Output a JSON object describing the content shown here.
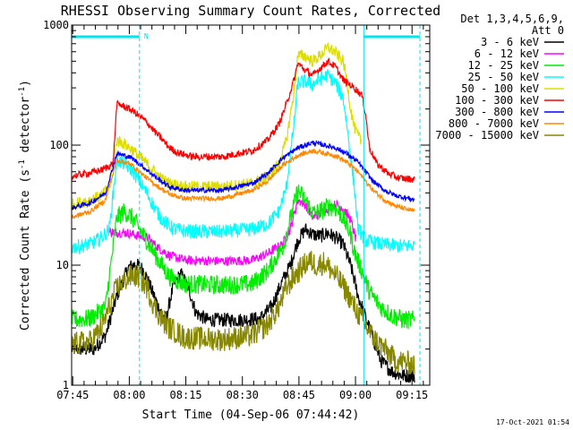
{
  "title": "RHESSI Observing Summary Count Rates, Corrected",
  "footer_timestamp": "17-Oct-2021 01:54",
  "colors": {
    "background": "#ffffff",
    "axes": "#000000",
    "marker": "#00e5ee"
  },
  "chart_data": {
    "type": "line",
    "title": "RHESSI Observing Summary Count Rates, Corrected",
    "xlabel": "Start Time (04-Sep-06 07:44:42)",
    "ylabel_parts": [
      "Corrected Count Rate (s",
      "-1",
      " detector",
      "-1",
      ")"
    ],
    "x_units": "minutes after 07:44:42",
    "xlim": [
      0,
      95
    ],
    "ylim": [
      1,
      1000
    ],
    "yscale": "log",
    "x_ticks": [
      {
        "t": 0.3,
        "label": "07:45"
      },
      {
        "t": 15.3,
        "label": "08:00"
      },
      {
        "t": 30.3,
        "label": "08:15"
      },
      {
        "t": 45.3,
        "label": "08:30"
      },
      {
        "t": 60.3,
        "label": "08:45"
      },
      {
        "t": 75.3,
        "label": "09:00"
      },
      {
        "t": 90.3,
        "label": "09:15"
      }
    ],
    "y_ticks": [
      {
        "v": 1,
        "label": "1"
      },
      {
        "v": 10,
        "label": "10"
      },
      {
        "v": 100,
        "label": "100"
      },
      {
        "v": 1000,
        "label": "1000"
      }
    ],
    "legend": {
      "placement": "right-outside",
      "header": [
        "Det 1,3,4,5,6,9,",
        "Att 0"
      ]
    },
    "markers": {
      "vertical_lines_t": [
        18.0,
        77.5,
        92.4
      ],
      "vertical_styles": [
        "dashed",
        "solid",
        "dashed"
      ],
      "night_intervals": [
        [
          0,
          18.0
        ],
        [
          77.5,
          92.4
        ]
      ],
      "night_level": 800,
      "night_label": "N",
      "night_label_t": 19.2
    },
    "series": [
      {
        "name": "3 - 6 keV",
        "color": "#000000",
        "noise": 0.06,
        "points": [
          [
            0,
            2.0
          ],
          [
            6,
            2.0
          ],
          [
            9,
            2.6
          ],
          [
            12,
            5.5
          ],
          [
            15,
            9.5
          ],
          [
            17,
            10.2
          ],
          [
            19,
            9.2
          ],
          [
            21,
            6.5
          ],
          [
            23,
            4.5
          ],
          [
            25,
            3.5
          ],
          [
            27,
            6.8
          ],
          [
            29,
            8.5
          ],
          [
            31,
            6.5
          ],
          [
            33,
            4.0
          ],
          [
            36,
            3.5
          ],
          [
            40,
            3.5
          ],
          [
            45,
            3.5
          ],
          [
            50,
            3.6
          ],
          [
            53,
            4.5
          ],
          [
            56,
            7.5
          ],
          [
            58,
            10.0
          ],
          [
            60,
            16.0
          ],
          [
            62,
            20.0
          ],
          [
            64,
            18.0
          ],
          [
            66,
            17.5
          ],
          [
            68,
            18.5
          ],
          [
            70,
            17.0
          ],
          [
            72,
            15.0
          ],
          [
            74,
            10.0
          ],
          [
            75,
            7.5
          ],
          [
            76,
            5.5
          ],
          [
            77,
            4.5
          ],
          [
            79,
            3.0
          ],
          [
            82,
            1.6
          ],
          [
            85,
            1.3
          ],
          [
            88,
            1.2
          ],
          [
            91,
            1.2
          ]
        ]
      },
      {
        "name": "6 - 12 keV",
        "color": "#ff00ff",
        "noise": 0.04,
        "points": [
          [
            10,
            19.0
          ],
          [
            15,
            18.5
          ],
          [
            18,
            17.5
          ],
          [
            20,
            17.0
          ],
          [
            23,
            14.0
          ],
          [
            26,
            12.0
          ],
          [
            30,
            11.0
          ],
          [
            40,
            10.8
          ],
          [
            48,
            11.0
          ],
          [
            52,
            12.5
          ],
          [
            56,
            15.0
          ],
          [
            58,
            20.0
          ],
          [
            60,
            35.0
          ],
          [
            62,
            32.0
          ],
          [
            64,
            25.0
          ],
          [
            66,
            27.0
          ],
          [
            68,
            30.0
          ],
          [
            70,
            32.0
          ],
          [
            72,
            30.0
          ],
          [
            74,
            24.0
          ],
          [
            75.5,
            16.0
          ]
        ]
      },
      {
        "name": "12 - 25 keV",
        "color": "#00ee00",
        "noise": 0.08,
        "points": [
          [
            0,
            3.5
          ],
          [
            5,
            3.6
          ],
          [
            9,
            4.5
          ],
          [
            12,
            25.0
          ],
          [
            14,
            28.0
          ],
          [
            16,
            25.0
          ],
          [
            18,
            20.0
          ],
          [
            20,
            16.0
          ],
          [
            23,
            11.0
          ],
          [
            26,
            8.0
          ],
          [
            30,
            7.0
          ],
          [
            40,
            6.8
          ],
          [
            48,
            7.0
          ],
          [
            52,
            9.0
          ],
          [
            56,
            14.0
          ],
          [
            58,
            24.0
          ],
          [
            60,
            42.0
          ],
          [
            62,
            35.0
          ],
          [
            64,
            27.0
          ],
          [
            66,
            28.0
          ],
          [
            68,
            31.0
          ],
          [
            70,
            30.0
          ],
          [
            72,
            25.0
          ],
          [
            74,
            18.0
          ],
          [
            75,
            13.0
          ],
          [
            77,
            9.0
          ],
          [
            79,
            6.0
          ],
          [
            82,
            4.5
          ],
          [
            85,
            3.8
          ],
          [
            88,
            3.5
          ],
          [
            91,
            3.5
          ]
        ]
      },
      {
        "name": "25 - 50 keV",
        "color": "#00ffff",
        "noise": 0.06,
        "points": [
          [
            0,
            14.0
          ],
          [
            5,
            15.0
          ],
          [
            8,
            17.0
          ],
          [
            10,
            20.0
          ],
          [
            12,
            75.0
          ],
          [
            14,
            70.0
          ],
          [
            16,
            62.0
          ],
          [
            18,
            50.0
          ],
          [
            20,
            40.0
          ],
          [
            22,
            30.0
          ],
          [
            24,
            24.0
          ],
          [
            27,
            20.0
          ],
          [
            32,
            19.0
          ],
          [
            40,
            19.0
          ],
          [
            48,
            20.0
          ],
          [
            52,
            22.0
          ],
          [
            55,
            28.0
          ],
          [
            57,
            45.0
          ],
          [
            59,
            150.0
          ],
          [
            60,
            330.0
          ],
          [
            62,
            340.0
          ],
          [
            64,
            320.0
          ],
          [
            66,
            360.0
          ],
          [
            68,
            380.0
          ],
          [
            70,
            330.0
          ],
          [
            72,
            250.0
          ],
          [
            73,
            150.0
          ],
          [
            74,
            80.0
          ],
          [
            75,
            45.0
          ],
          [
            76,
            20.0
          ],
          [
            78,
            16.0
          ],
          [
            82,
            15.0
          ],
          [
            86,
            14.5
          ],
          [
            91,
            14.5
          ]
        ]
      },
      {
        "name": "50 - 100 keV",
        "color": "#dddd00",
        "noise": 0.05,
        "points": [
          [
            0,
            32.0
          ],
          [
            5,
            35.0
          ],
          [
            8,
            38.0
          ],
          [
            10,
            45.0
          ],
          [
            12,
            110.0
          ],
          [
            14,
            102.0
          ],
          [
            16,
            92.0
          ],
          [
            18,
            80.0
          ],
          [
            20,
            70.0
          ],
          [
            22,
            60.0
          ],
          [
            24,
            52.0
          ],
          [
            26,
            48.0
          ],
          [
            30,
            45.0
          ],
          [
            40,
            45.0
          ],
          [
            48,
            48.0
          ],
          [
            52,
            55.0
          ],
          [
            55,
            70.0
          ],
          [
            57,
            110.0
          ],
          [
            59,
            280.0
          ],
          [
            60,
            560.0
          ],
          [
            62,
            550.0
          ],
          [
            64,
            500.0
          ],
          [
            66,
            560.0
          ],
          [
            68,
            650.0
          ],
          [
            70,
            590.0
          ],
          [
            72,
            500.0
          ],
          [
            73,
            350.0
          ],
          [
            74,
            200.0
          ],
          [
            75,
            140.0
          ],
          [
            76,
            120.0
          ],
          [
            77,
            105.0
          ]
        ]
      },
      {
        "name": "100 - 300 keV",
        "color": "#ff0000",
        "noise": 0.03,
        "points": [
          [
            0,
            55.0
          ],
          [
            4,
            58.0
          ],
          [
            8,
            62.0
          ],
          [
            11,
            70.0
          ],
          [
            12,
            220.0
          ],
          [
            14,
            210.0
          ],
          [
            16,
            195.0
          ],
          [
            18,
            175.0
          ],
          [
            20,
            155.0
          ],
          [
            22,
            130.0
          ],
          [
            24,
            112.0
          ],
          [
            26,
            95.0
          ],
          [
            28,
            87.0
          ],
          [
            32,
            80.0
          ],
          [
            40,
            80.0
          ],
          [
            48,
            90.0
          ],
          [
            52,
            110.0
          ],
          [
            55,
            150.0
          ],
          [
            57,
            220.0
          ],
          [
            59,
            350.0
          ],
          [
            60,
            480.0
          ],
          [
            62,
            420.0
          ],
          [
            64,
            380.0
          ],
          [
            66,
            440.0
          ],
          [
            68,
            500.0
          ],
          [
            70,
            450.0
          ],
          [
            72,
            350.0
          ],
          [
            75,
            300.0
          ],
          [
            77,
            260.0
          ],
          [
            78,
            180.0
          ],
          [
            79,
            95.0
          ],
          [
            81,
            70.0
          ],
          [
            84,
            58.0
          ],
          [
            87,
            53.0
          ],
          [
            91,
            52.0
          ]
        ]
      },
      {
        "name": "300 - 800 keV",
        "color": "#0000ff",
        "noise": 0.02,
        "points": [
          [
            0,
            30.0
          ],
          [
            5,
            33.0
          ],
          [
            9,
            40.0
          ],
          [
            12,
            85.0
          ],
          [
            14,
            82.0
          ],
          [
            16,
            78.0
          ],
          [
            18,
            70.0
          ],
          [
            20,
            62.0
          ],
          [
            23,
            52.0
          ],
          [
            26,
            45.0
          ],
          [
            30,
            42.0
          ],
          [
            40,
            42.0
          ],
          [
            48,
            48.0
          ],
          [
            52,
            58.0
          ],
          [
            56,
            78.0
          ],
          [
            60,
            95.0
          ],
          [
            64,
            105.0
          ],
          [
            67,
            100.0
          ],
          [
            70,
            95.0
          ],
          [
            73,
            85.0
          ],
          [
            76,
            72.0
          ],
          [
            78,
            60.0
          ],
          [
            80,
            50.0
          ],
          [
            83,
            42.0
          ],
          [
            86,
            38.0
          ],
          [
            91,
            35.0
          ]
        ]
      },
      {
        "name": "800 - 7000 keV",
        "color": "#ff8800",
        "noise": 0.02,
        "points": [
          [
            0,
            25.0
          ],
          [
            5,
            28.0
          ],
          [
            9,
            35.0
          ],
          [
            12,
            75.0
          ],
          [
            14,
            72.0
          ],
          [
            16,
            68.0
          ],
          [
            18,
            60.0
          ],
          [
            20,
            53.0
          ],
          [
            23,
            45.0
          ],
          [
            26,
            39.0
          ],
          [
            30,
            36.0
          ],
          [
            40,
            36.0
          ],
          [
            48,
            42.0
          ],
          [
            52,
            50.0
          ],
          [
            56,
            68.0
          ],
          [
            60,
            82.0
          ],
          [
            64,
            90.0
          ],
          [
            67,
            86.0
          ],
          [
            70,
            82.0
          ],
          [
            73,
            72.0
          ],
          [
            76,
            60.0
          ],
          [
            78,
            50.0
          ],
          [
            80,
            42.0
          ],
          [
            83,
            35.0
          ],
          [
            86,
            31.0
          ],
          [
            91,
            28.0
          ]
        ]
      },
      {
        "name": "7000 - 15000 keV",
        "color": "#888800",
        "noise": 0.1,
        "points": [
          [
            0,
            2.2
          ],
          [
            5,
            2.3
          ],
          [
            8,
            3.0
          ],
          [
            10,
            4.5
          ],
          [
            12,
            6.5
          ],
          [
            14,
            7.5
          ],
          [
            16,
            8.2
          ],
          [
            18,
            8.0
          ],
          [
            20,
            6.5
          ],
          [
            22,
            4.5
          ],
          [
            24,
            3.5
          ],
          [
            26,
            3.0
          ],
          [
            30,
            2.5
          ],
          [
            40,
            2.4
          ],
          [
            48,
            2.6
          ],
          [
            52,
            3.2
          ],
          [
            55,
            4.5
          ],
          [
            57,
            6.5
          ],
          [
            59,
            8.0
          ],
          [
            61,
            9.5
          ],
          [
            63,
            11.0
          ],
          [
            65,
            10.0
          ],
          [
            67,
            10.5
          ],
          [
            69,
            9.0
          ],
          [
            71,
            7.5
          ],
          [
            73,
            6.0
          ],
          [
            75,
            4.5
          ],
          [
            77,
            3.5
          ],
          [
            80,
            2.5
          ],
          [
            83,
            2.0
          ],
          [
            86,
            1.6
          ],
          [
            91,
            1.5
          ]
        ]
      }
    ]
  }
}
